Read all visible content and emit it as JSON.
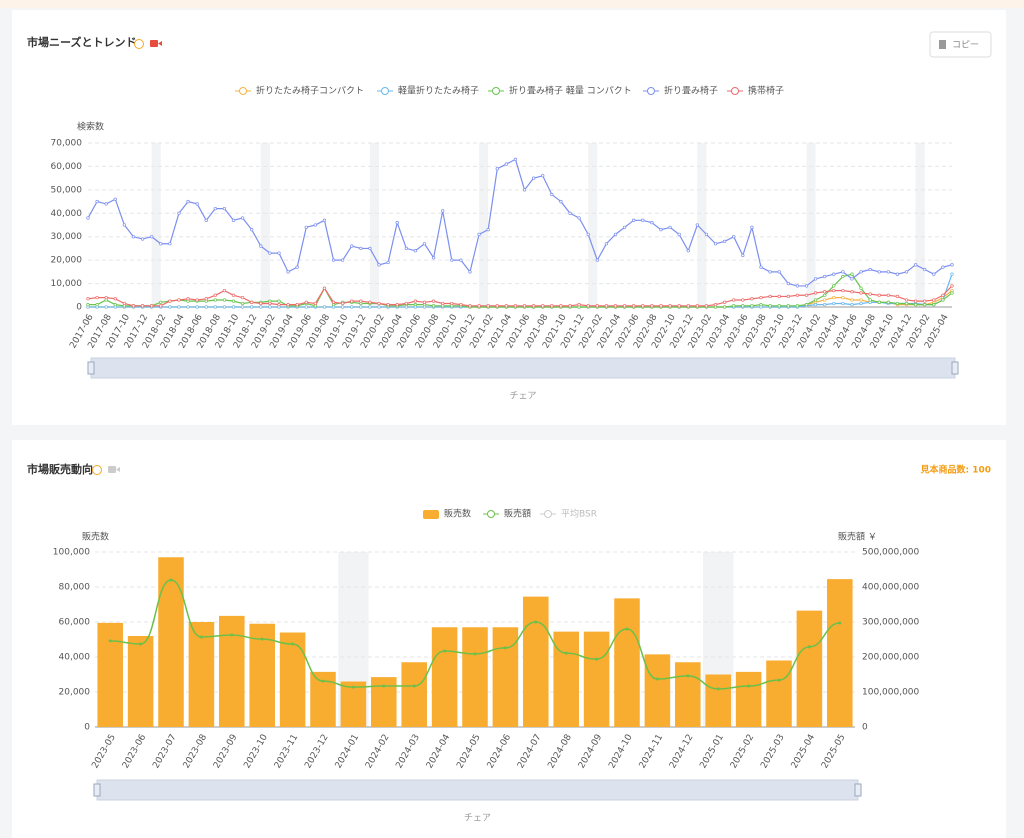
{
  "chart_data": [
    {
      "type": "line",
      "title": "市場ニーズとトレンド",
      "button": "コピー",
      "slider_label": "チェア",
      "y_label": "検索数",
      "categories": [
        "2017-06",
        null,
        "2017-08",
        null,
        "2017-10",
        null,
        "2017-12",
        null,
        "2018-02",
        null,
        "2018-04",
        null,
        "2018-06",
        null,
        "2018-08",
        null,
        "2018-10",
        null,
        "2018-12",
        null,
        "2019-02",
        null,
        "2019-04",
        null,
        "2019-06",
        null,
        "2019-08",
        null,
        "2019-10",
        null,
        "2019-12",
        null,
        "2020-02",
        null,
        "2020-04",
        null,
        "2020-06",
        null,
        "2020-08",
        null,
        "2020-10",
        null,
        "2020-12",
        null,
        "2021-02",
        null,
        "2021-04",
        null,
        "2021-06",
        null,
        "2021-08",
        null,
        "2021-10",
        null,
        "2021-12",
        null,
        "2022-02",
        null,
        "2022-04",
        null,
        "2022-06",
        null,
        "2022-08",
        null,
        "2022-10",
        null,
        "2022-12",
        null,
        "2023-02",
        null,
        "2023-04",
        null,
        "2023-06",
        null,
        "2023-08",
        null,
        "2023-10",
        null,
        "2023-12",
        null,
        "2024-02",
        null,
        "2024-04",
        null,
        "2024-06",
        null,
        "2024-08",
        null,
        "2024-10",
        null,
        "2024-12",
        null,
        "2025-02",
        null,
        "2025-04",
        null
      ],
      "series": [
        {
          "name": "折りたたみ椅子コンパクト",
          "color": "#f5b342",
          "values": [
            0,
            0,
            0,
            0,
            0,
            0,
            0,
            0,
            0,
            0,
            0,
            0,
            0,
            0,
            0,
            0,
            0,
            0,
            0,
            0,
            0,
            0,
            0,
            0,
            0,
            0,
            0,
            0,
            0,
            0,
            0,
            0,
            0,
            0,
            0,
            0,
            0,
            0,
            0,
            0,
            0,
            0,
            0,
            0,
            0,
            0,
            0,
            0,
            0,
            0,
            0,
            0,
            0,
            0,
            0,
            0,
            0,
            0,
            0,
            0,
            0,
            0,
            0,
            0,
            0,
            0,
            0,
            0,
            0,
            0,
            0,
            0,
            0,
            0,
            0,
            0,
            0,
            0,
            0,
            1000,
            2000,
            3000,
            4000,
            4000,
            3000,
            3000,
            2000,
            2000,
            2000,
            1000,
            1000,
            1000,
            1000,
            2000,
            4000,
            7000
          ]
        },
        {
          "name": "軽量折りたたみ椅子",
          "color": "#6ab8ef",
          "values": [
            0,
            0,
            0,
            0,
            0,
            0,
            0,
            0,
            0,
            0,
            0,
            0,
            0,
            0,
            0,
            0,
            0,
            0,
            0,
            0,
            0,
            0,
            0,
            0,
            0,
            0,
            0,
            0,
            0,
            0,
            0,
            0,
            0,
            0,
            0,
            0,
            0,
            0,
            0,
            0,
            0,
            0,
            0,
            0,
            0,
            0,
            0,
            0,
            0,
            0,
            0,
            0,
            0,
            0,
            0,
            0,
            0,
            0,
            0,
            0,
            0,
            0,
            0,
            0,
            0,
            0,
            0,
            0,
            0,
            0,
            0,
            0,
            0,
            0,
            0,
            0,
            0,
            0,
            0,
            500,
            1000,
            1000,
            1500,
            1500,
            1000,
            1500,
            2000,
            2000,
            1500,
            1500,
            1500,
            1500,
            1000,
            1000,
            3000,
            14000
          ]
        },
        {
          "name": "折り畳み椅子 軽量 コンパクト",
          "color": "#66c44d",
          "values": [
            1000,
            1000,
            3000,
            1000,
            500,
            500,
            500,
            500,
            2000,
            2500,
            3000,
            2500,
            2500,
            2500,
            3000,
            3000,
            2500,
            1500,
            2000,
            2000,
            2500,
            2500,
            500,
            500,
            1500,
            500,
            8000,
            1000,
            2000,
            2000,
            1500,
            1500,
            1500,
            500,
            500,
            1000,
            1000,
            1000,
            500,
            500,
            500,
            500,
            0,
            0,
            0,
            0,
            0,
            0,
            0,
            0,
            0,
            0,
            0,
            0,
            0,
            0,
            0,
            0,
            0,
            0,
            0,
            0,
            0,
            0,
            0,
            0,
            0,
            0,
            0,
            0,
            0,
            500,
            500,
            500,
            1000,
            500,
            500,
            500,
            500,
            1000,
            3000,
            5000,
            9000,
            13000,
            14000,
            8000,
            3000,
            2000,
            2000,
            1500,
            1500,
            1000,
            1000,
            1000,
            3000,
            6000
          ]
        },
        {
          "name": "折り畳み椅子",
          "color": "#7b8ff0",
          "values": [
            38000,
            45000,
            44000,
            46000,
            35000,
            30000,
            29000,
            30000,
            27000,
            27000,
            40000,
            45000,
            44000,
            37000,
            42000,
            42000,
            37000,
            38000,
            33000,
            26000,
            23000,
            23000,
            15000,
            17000,
            34000,
            35000,
            37000,
            20000,
            20000,
            26000,
            25000,
            25000,
            18000,
            19000,
            36000,
            25000,
            24000,
            27000,
            21000,
            41000,
            20000,
            20000,
            15000,
            31000,
            33000,
            59000,
            61000,
            63000,
            50000,
            55000,
            56000,
            48000,
            45000,
            40000,
            38000,
            31000,
            20000,
            27000,
            31000,
            34000,
            37000,
            37000,
            36000,
            33000,
            34000,
            31000,
            24000,
            35000,
            31000,
            27000,
            28000,
            30000,
            22000,
            34000,
            17000,
            15000,
            15000,
            10000,
            9000,
            9000,
            12000,
            13000,
            14000,
            15000,
            12000,
            15000,
            16000,
            15000,
            15000,
            14000,
            15000,
            18000,
            16000,
            14000,
            17000,
            18000
          ]
        },
        {
          "name": "携帯椅子",
          "color": "#ee6b6b",
          "values": [
            3500,
            4000,
            4000,
            3500,
            1500,
            500,
            500,
            500,
            500,
            2500,
            3000,
            3500,
            3000,
            3500,
            5000,
            7000,
            5000,
            4000,
            2000,
            1500,
            1500,
            1000,
            1000,
            1000,
            2000,
            1500,
            8000,
            2000,
            1500,
            2500,
            2500,
            2000,
            1500,
            1000,
            1000,
            1500,
            2500,
            2000,
            2500,
            1500,
            1500,
            1000,
            500,
            500,
            500,
            500,
            500,
            500,
            500,
            500,
            500,
            500,
            500,
            500,
            1000,
            500,
            500,
            500,
            500,
            500,
            500,
            500,
            500,
            500,
            500,
            500,
            500,
            500,
            500,
            1000,
            2000,
            3000,
            3000,
            3500,
            4000,
            4500,
            4500,
            4500,
            5000,
            5000,
            6000,
            6500,
            7000,
            7000,
            6500,
            6000,
            5500,
            5000,
            5000,
            4500,
            3000,
            2500,
            2500,
            3000,
            5000,
            9000
          ]
        }
      ],
      "ylim": [
        0,
        70000
      ],
      "yticks": [
        0,
        {
          "value": 10000,
          "label": "10,000"
        },
        {
          "value": 20000,
          "label": "20,000"
        },
        {
          "value": 30000,
          "label": "30,000"
        },
        {
          "value": 40000,
          "label": "40,000"
        },
        {
          "value": 50000,
          "label": "50,000"
        },
        {
          "value": 60000,
          "label": "60,000"
        },
        {
          "value": 70000,
          "label": "70,000"
        }
      ],
      "grid": true
    },
    {
      "type": "combo",
      "title": "市場販売動向",
      "sample_count": "見本商品数: 100",
      "slider_label": "チェア",
      "y_label": "販売数",
      "y2_label": "販売額 ￥",
      "categories": [
        "2023-05",
        "2023-06",
        "2023-07",
        "2023-08",
        "2023-09",
        "2023-10",
        "2023-11",
        "2023-12",
        "2024-01",
        "2024-02",
        "2024-03",
        "2024-04",
        "2024-05",
        "2024-06",
        "2024-07",
        "2024-08",
        "2024-09",
        "2024-10",
        "2024-11",
        "2024-12",
        "2025-01",
        "2025-02",
        "2025-03",
        "2025-04",
        "2025-05"
      ],
      "series": [
        {
          "name": "販売数",
          "color": "#f8ac30",
          "kind": "bar",
          "values": [
            59500,
            52000,
            97000,
            60000,
            63500,
            59000,
            54000,
            31500,
            26000,
            28500,
            37000,
            57000,
            57000,
            57000,
            74500,
            54500,
            54500,
            73500,
            41500,
            37000,
            30000,
            31500,
            38000,
            66500,
            84500
          ]
        },
        {
          "name": "販売額",
          "color": "#6cc04a",
          "kind": "line",
          "axis": "y2",
          "values": [
            246000000,
            237000000,
            420000000,
            257000000,
            263000000,
            251000000,
            237000000,
            131000000,
            114000000,
            117000000,
            117000000,
            217000000,
            209000000,
            226000000,
            300000000,
            211000000,
            194000000,
            280000000,
            137000000,
            146000000,
            109000000,
            117000000,
            134000000,
            229000000,
            297000000
          ]
        },
        {
          "name": "平均BSR",
          "color": "#cccccc",
          "kind": "line",
          "visible": false
        }
      ],
      "ylim": [
        0,
        100000
      ],
      "yticks": [
        0,
        {
          "value": 20000,
          "label": "20,000"
        },
        {
          "value": 40000,
          "label": "40,000"
        },
        {
          "value": 60000,
          "label": "60,000"
        },
        {
          "value": 80000,
          "label": "80,000"
        },
        {
          "value": 100000,
          "label": "100,000"
        }
      ],
      "y2lim": [
        0,
        500000000
      ],
      "y2ticks": [
        0,
        {
          "value": 100000000,
          "label": "100,000,000"
        },
        {
          "value": 200000000,
          "label": "200,000,000"
        },
        {
          "value": 300000000,
          "label": "300,000,000"
        },
        {
          "value": 400000000,
          "label": "400,000,000"
        },
        {
          "value": 500000000,
          "label": "500,000,000"
        }
      ],
      "grid": true
    }
  ]
}
